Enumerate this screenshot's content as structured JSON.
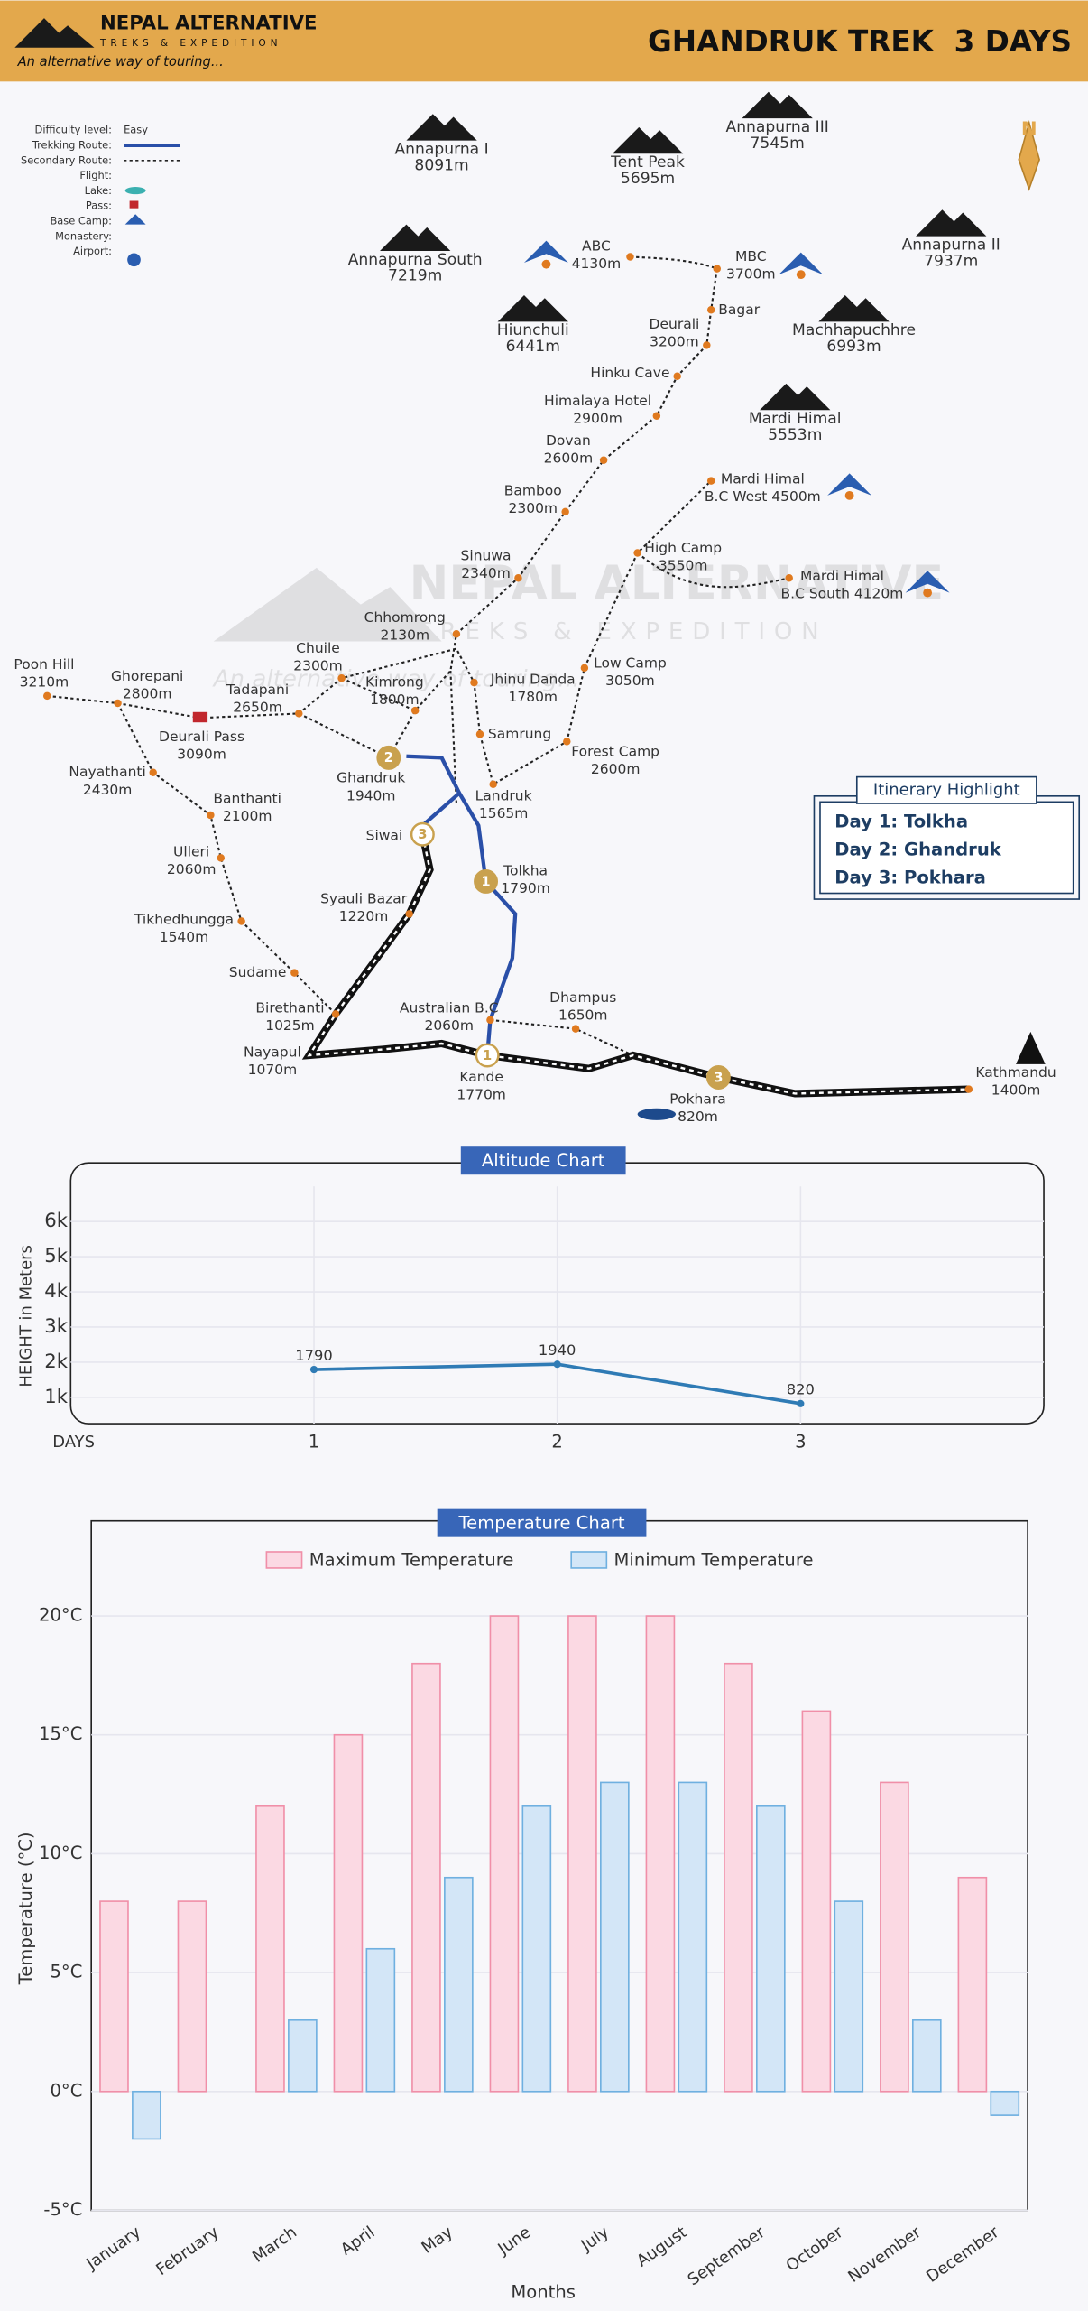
{
  "header": {
    "brand": "NEPAL ALTERNATIVE",
    "brand_sub": "TREKS & EXPEDITION",
    "tagline": "An alternative way of touring...",
    "title": "GHANDRUK TREK  3 DAYS"
  },
  "legend": [
    {
      "label": "Difficulty level:",
      "value": "Easy"
    },
    {
      "label": "Trekking Route:"
    },
    {
      "label": "Secondary Route:"
    },
    {
      "label": "Flight:"
    },
    {
      "label": "Lake:"
    },
    {
      "label": "Pass:"
    },
    {
      "label": "Base Camp:"
    },
    {
      "label": "Monastery:"
    },
    {
      "label": "Airport:"
    }
  ],
  "compass": "N",
  "watermark": {
    "brand": "NEPAL ALTERNATIVE",
    "sub": "TREKS & EXPEDITION",
    "tagline": "An alternative way of touring..."
  },
  "map": {
    "peaks": [
      {
        "name": "Annapurna I",
        "altitude": "8091m"
      },
      {
        "name": "Tent Peak",
        "altitude": "5695m"
      },
      {
        "name": "Annapurna III",
        "altitude": "7545m"
      },
      {
        "name": "Annapurna South",
        "altitude": "7219m"
      },
      {
        "name": "Annapurna II",
        "altitude": "7937m"
      },
      {
        "name": "Hiunchuli",
        "altitude": "6441m"
      },
      {
        "name": "Machhapuchhre",
        "altitude": "6993m"
      },
      {
        "name": "Mardi Himal",
        "altitude": "5553m"
      }
    ],
    "places": [
      {
        "name": "ABC",
        "altitude": "4130m"
      },
      {
        "name": "MBC",
        "altitude": "3700m"
      },
      {
        "name": "Bagar"
      },
      {
        "name": "Deurali",
        "altitude": "3200m"
      },
      {
        "name": "Hinku Cave"
      },
      {
        "name": "Himalaya Hotel",
        "altitude": "2900m"
      },
      {
        "name": "Dovan",
        "altitude": "2600m"
      },
      {
        "name": "Bamboo",
        "altitude": "2300m"
      },
      {
        "name": "Sinuwa",
        "altitude": "2340m"
      },
      {
        "name": "Chhomrong",
        "altitude": "2130m"
      },
      {
        "name": "Chuile",
        "altitude": "2300m"
      },
      {
        "name": "Kimrong",
        "altitude": "1800m"
      },
      {
        "name": "Jhinu Danda",
        "altitude": "1780m"
      },
      {
        "name": "Ghorepani",
        "altitude": "2800m"
      },
      {
        "name": "Poon Hill",
        "altitude": "3210m"
      },
      {
        "name": "Tadapani",
        "altitude": "2650m"
      },
      {
        "name": "Deurali Pass",
        "altitude": "3090m"
      },
      {
        "name": "Samrung"
      },
      {
        "name": "Forest Camp",
        "altitude": "2600m"
      },
      {
        "name": "Low Camp",
        "altitude": "3050m"
      },
      {
        "name": "High Camp",
        "altitude": "3550m"
      },
      {
        "name": "Mardi Himal",
        "altitude": "B.C West 4500m"
      },
      {
        "name": "Mardi Himal",
        "altitude": "B.C South 4120m"
      },
      {
        "name": "Landruk",
        "altitude": "1565m"
      },
      {
        "name": "Ghandruk",
        "altitude": "1940m"
      },
      {
        "name": "Nayathanti",
        "altitude": "2430m"
      },
      {
        "name": "Banthanti",
        "altitude": "2100m"
      },
      {
        "name": "Siwai"
      },
      {
        "name": "Tolkha",
        "altitude": "1790m"
      },
      {
        "name": "Ulleri",
        "altitude": "2060m"
      },
      {
        "name": "Syauli Bazar",
        "altitude": "1220m"
      },
      {
        "name": "Tikhedhungga",
        "altitude": "1540m"
      },
      {
        "name": "Sudame"
      },
      {
        "name": "Birethanti",
        "altitude": "1025m"
      },
      {
        "name": "Nayapul",
        "altitude": "1070m"
      },
      {
        "name": "Australian B.C",
        "altitude": "2060m"
      },
      {
        "name": "Dhampus",
        "altitude": "1650m"
      },
      {
        "name": "Kande",
        "altitude": "1770m"
      },
      {
        "name": "Pokhara",
        "altitude": "820m"
      },
      {
        "name": "Kathmandu",
        "altitude": "1400m"
      }
    ],
    "day_markers": [
      "2",
      "3",
      "1",
      "1",
      "3"
    ]
  },
  "itinerary": {
    "title": "Itinerary Highlight",
    "days": [
      {
        "day": "Day 1:",
        "place": "Tolkha"
      },
      {
        "day": "Day 2:",
        "place": "Ghandruk"
      },
      {
        "day": "Day 3:",
        "place": "Pokhara"
      }
    ]
  },
  "chart_data": [
    {
      "type": "line",
      "title": "Altitude Chart",
      "y_label": "HEIGHT in Meters",
      "x_label": "DAYS",
      "x": [
        1,
        2,
        3
      ],
      "values": [
        1790,
        1940,
        820
      ],
      "color": "#2f7bb5",
      "xlim": [
        0,
        4
      ],
      "xticks": [
        1,
        2,
        3
      ],
      "ylim": [
        250,
        7000
      ],
      "yticks": [
        {
          "value": 1000,
          "label": "1k"
        },
        {
          "value": 2000,
          "label": "2k"
        },
        {
          "value": 3000,
          "label": "3k"
        },
        {
          "value": 4000,
          "label": "4k"
        },
        {
          "value": 5000,
          "label": "5k"
        },
        {
          "value": 6000,
          "label": "6k"
        }
      ],
      "grid": true
    },
    {
      "type": "bar",
      "title": "Temperature Chart",
      "y_label": "Temperature (°C)",
      "x_label": "Months",
      "categories": [
        "January",
        "February",
        "March",
        "April",
        "May",
        "June",
        "July",
        "August",
        "September",
        "October",
        "November",
        "December"
      ],
      "series": [
        {
          "name": "Maximum Temperature",
          "color": "#f08fa8",
          "fill": "#fbd9e3",
          "values": [
            8,
            8,
            12,
            15,
            18,
            20,
            20,
            20,
            18,
            16,
            13,
            9
          ]
        },
        {
          "name": "Minimum Temperature",
          "color": "#6fb0e0",
          "fill": "#d3e6f7",
          "values": [
            -2,
            0,
            3,
            6,
            9,
            12,
            13,
            13,
            12,
            8,
            3,
            -1
          ]
        }
      ],
      "ylim": [
        -5,
        24
      ],
      "yticks": [
        {
          "value": -5,
          "label": "-5°C"
        },
        {
          "value": 0,
          "label": "0°C"
        },
        {
          "value": 5,
          "label": "5°C"
        },
        {
          "value": 10,
          "label": "10°C"
        },
        {
          "value": 15,
          "label": "15°C"
        },
        {
          "value": 20,
          "label": "20°C"
        }
      ],
      "grid": true,
      "legend": "top"
    }
  ]
}
